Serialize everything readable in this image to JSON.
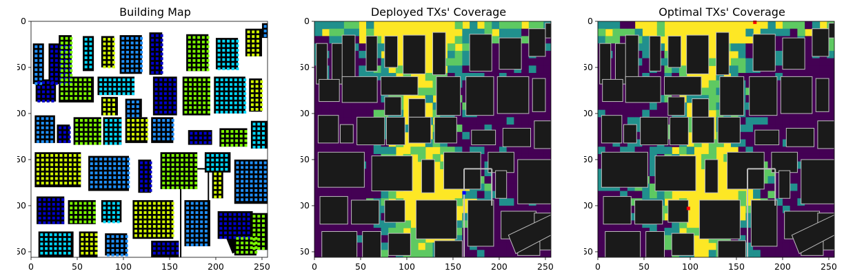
{
  "chart_data": [
    {
      "type": "heatmap",
      "title": "Building Map",
      "xlim": [
        0,
        256
      ],
      "ylim": [
        256,
        0
      ],
      "xticks": [
        0,
        50,
        100,
        150,
        200,
        250
      ],
      "yticks": [
        0,
        50,
        100,
        150,
        200,
        250
      ],
      "background": "#ffffff",
      "colors": {
        "building": "#000000",
        "tx_a": "#1e90ff",
        "tx_b": "#0000cd",
        "tx_c": "#7cfc00",
        "tx_d": "#00d8ff",
        "tx_e": "#d4ff00"
      }
    },
    {
      "type": "heatmap",
      "title": "Deployed TXs' Coverage",
      "xlim": [
        0,
        256
      ],
      "ylim": [
        256,
        0
      ],
      "xticks": [
        0,
        50,
        100,
        150,
        200,
        250
      ],
      "yticks": [
        0,
        50,
        100,
        150,
        200,
        250
      ],
      "colormap": [
        "#440154",
        "#21908d",
        "#5ec962",
        "#fde725"
      ],
      "tx_markers": [
        {
          "x": 162,
          "y": 186,
          "color": "#0000ff"
        }
      ]
    },
    {
      "type": "heatmap",
      "title": "Optimal TXs' Coverage",
      "xlim": [
        0,
        256
      ],
      "ylim": [
        256,
        0
      ],
      "xticks": [
        0,
        50,
        100,
        150,
        200,
        250
      ],
      "yticks": [
        0,
        50,
        100,
        150,
        200,
        250
      ],
      "colormap": [
        "#440154",
        "#21908d",
        "#5ec962",
        "#fde725"
      ],
      "tx_markers": [
        {
          "x": 170,
          "y": 1,
          "color": "#ff0000"
        },
        {
          "x": 98,
          "y": 203,
          "color": "#ff0000"
        }
      ]
    }
  ]
}
